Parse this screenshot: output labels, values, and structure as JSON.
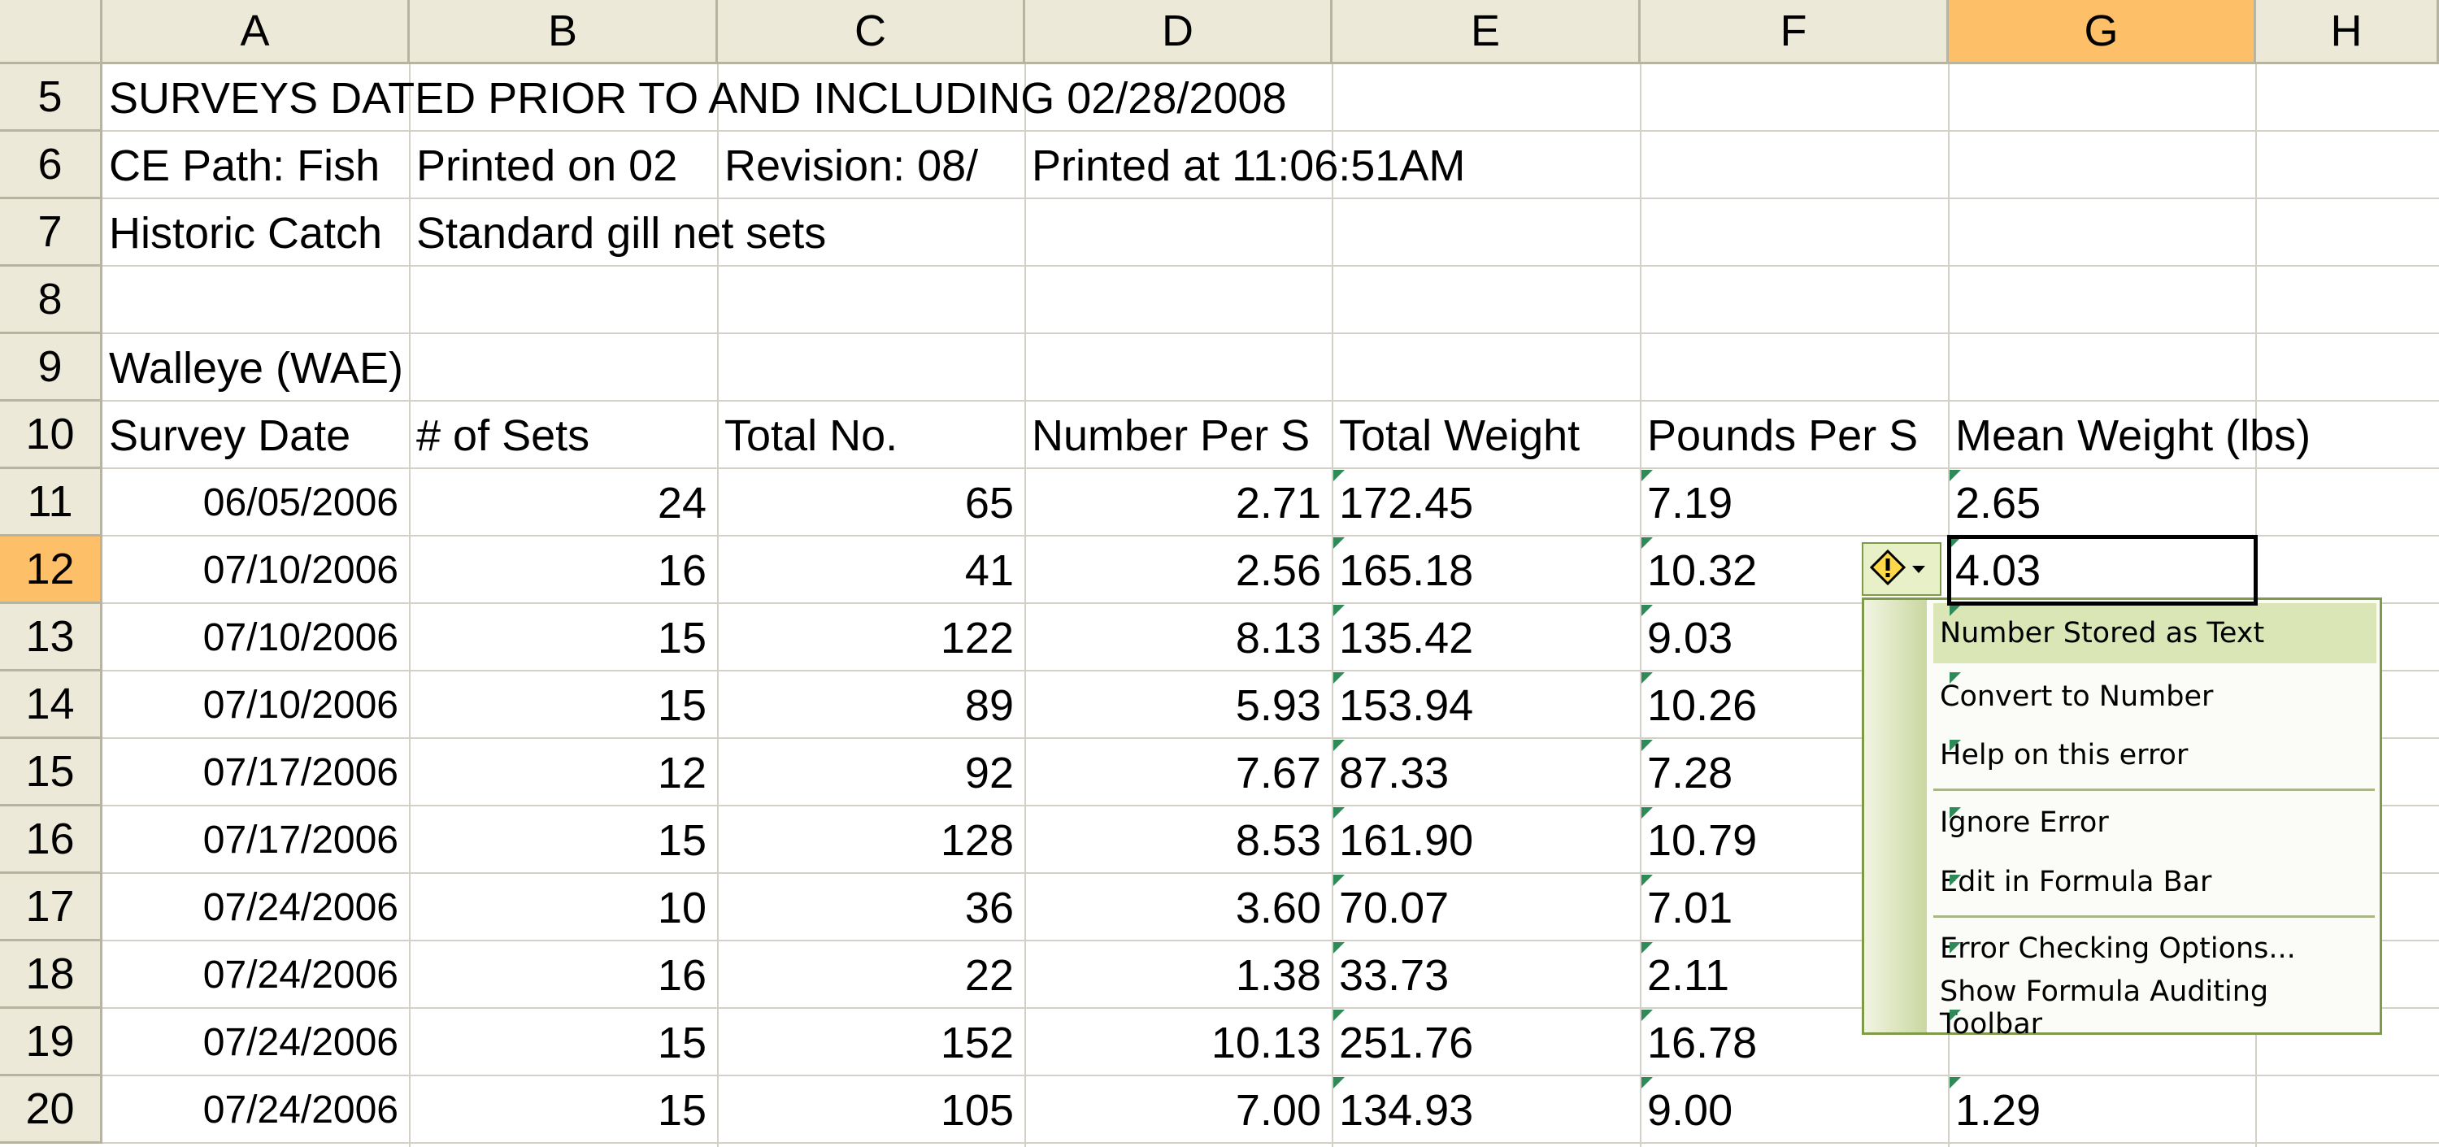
{
  "columns": [
    "A",
    "B",
    "C",
    "D",
    "E",
    "F",
    "G",
    "H"
  ],
  "row_numbers": [
    "5",
    "6",
    "7",
    "8",
    "9",
    "10",
    "11",
    "12",
    "13",
    "14",
    "15",
    "16",
    "17",
    "18",
    "19",
    "20"
  ],
  "title_rows": {
    "r5_a": "SURVEYS DATED PRIOR TO AND INCLUDING 02/28/2008",
    "r6_a": "CE Path: Fish",
    "r6_b": "Printed on 02",
    "r6_c": "Revision: 08/",
    "r6_d": "Printed at 11:06:51AM",
    "r7_a": "Historic Catch",
    "r7_b": "Standard gill net sets",
    "r9_a": "Walleye (WAE)"
  },
  "headers": {
    "a": "Survey Date",
    "b": "# of Sets",
    "c": "Total No.",
    "d": "Number Per S",
    "e": "Total Weight",
    "f": "Pounds Per S",
    "g": "Mean Weight (lbs)"
  },
  "rows": [
    {
      "date": "06/05/2006",
      "sets": "24",
      "total": "65",
      "nps": "2.71",
      "weight": "172.45",
      "pps": "7.19",
      "mean": "2.65"
    },
    {
      "date": "07/10/2006",
      "sets": "16",
      "total": "41",
      "nps": "2.56",
      "weight": "165.18",
      "pps": "10.32",
      "mean": "4.03"
    },
    {
      "date": "07/10/2006",
      "sets": "15",
      "total": "122",
      "nps": "8.13",
      "weight": "135.42",
      "pps": "9.03",
      "mean": ""
    },
    {
      "date": "07/10/2006",
      "sets": "15",
      "total": "89",
      "nps": "5.93",
      "weight": "153.94",
      "pps": "10.26",
      "mean": ""
    },
    {
      "date": "07/17/2006",
      "sets": "12",
      "total": "92",
      "nps": "7.67",
      "weight": "87.33",
      "pps": "7.28",
      "mean": ""
    },
    {
      "date": "07/17/2006",
      "sets": "15",
      "total": "128",
      "nps": "8.53",
      "weight": "161.90",
      "pps": "10.79",
      "mean": ""
    },
    {
      "date": "07/24/2006",
      "sets": "10",
      "total": "36",
      "nps": "3.60",
      "weight": "70.07",
      "pps": "7.01",
      "mean": ""
    },
    {
      "date": "07/24/2006",
      "sets": "16",
      "total": "22",
      "nps": "1.38",
      "weight": "33.73",
      "pps": "2.11",
      "mean": ""
    },
    {
      "date": "07/24/2006",
      "sets": "15",
      "total": "152",
      "nps": "10.13",
      "weight": "251.76",
      "pps": "16.78",
      "mean": ""
    },
    {
      "date": "07/24/2006",
      "sets": "15",
      "total": "105",
      "nps": "7.00",
      "weight": "134.93",
      "pps": "9.00",
      "mean": "1.29"
    }
  ],
  "active_cell": {
    "column": "G",
    "row": "12"
  },
  "error_menu": {
    "header": "Number Stored as Text",
    "items": [
      "Convert to Number",
      "Help on this error",
      "Ignore Error",
      "Edit in Formula Bar",
      "Error Checking Options...",
      "Show Formula Auditing Toolbar"
    ]
  },
  "colors": {
    "header_bg": "#ece9d8",
    "selected_header": "#fdc068",
    "gridline": "#d4d0c8",
    "error_indicator": "#2e8b57",
    "menu_border": "#7f9a48"
  },
  "icons": {
    "smart_tag": "warning-diamond-icon"
  }
}
